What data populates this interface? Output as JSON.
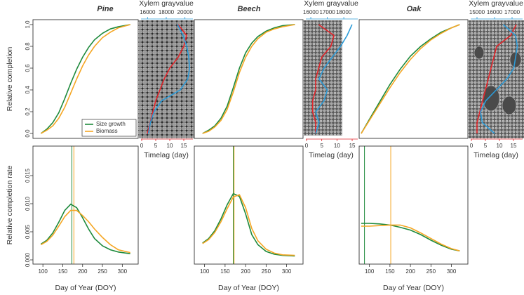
{
  "chart_data": [
    {
      "type": "line",
      "title": "Pine",
      "ylabel": "Relative completion",
      "legend": "lower right",
      "x": [
        95,
        110,
        125,
        140,
        155,
        170,
        185,
        200,
        215,
        230,
        250,
        270,
        290,
        320
      ],
      "xlim": [
        75,
        340
      ],
      "ylim": [
        -0.045,
        1.045
      ],
      "yticks": [
        {
          "value": 0,
          "label": "0.0"
        },
        0.2,
        0.4,
        0.6,
        0.8,
        {
          "value": 1,
          "label": "1.0"
        }
      ],
      "series": [
        {
          "name": "Size growth",
          "color": "#1e8a3c",
          "values": [
            0,
            0.04,
            0.1,
            0.19,
            0.32,
            0.46,
            0.59,
            0.7,
            0.79,
            0.86,
            0.92,
            0.96,
            0.98,
            1.0
          ]
        },
        {
          "name": "Biomass",
          "color": "#f5a623",
          "values": [
            0,
            0.03,
            0.07,
            0.14,
            0.24,
            0.37,
            0.5,
            0.62,
            0.72,
            0.8,
            0.88,
            0.93,
            0.97,
            1.0
          ]
        }
      ]
    },
    {
      "type": "profile",
      "xlabel": "Timelag (day)",
      "x2label": "Xylem grayvalue",
      "y": [
        0,
        0.1,
        0.2,
        0.3,
        0.4,
        0.5,
        0.6,
        0.7,
        0.8,
        0.9,
        1.0
      ],
      "ylim": [
        -0.045,
        1.045
      ],
      "xlim": [
        -1.25,
        18.75
      ],
      "xticks": [
        0,
        5,
        10,
        15
      ],
      "x2lim": [
        15000,
        21000
      ],
      "x2ticks": [
        16000,
        18000,
        20000
      ],
      "series": [
        {
          "color": "#e3262b",
          "values": [
            2,
            3,
            4,
            5,
            6.5,
            8,
            10,
            13,
            15,
            16,
            13
          ]
        },
        {
          "color": "#2b9bd8",
          "axis": "x2",
          "values": [
            16100,
            16300,
            16700,
            17500,
            19500,
            20300,
            20500,
            20400,
            20200,
            19800,
            19200
          ]
        }
      ]
    },
    {
      "type": "line",
      "title": "Beech",
      "x": [
        95,
        110,
        125,
        140,
        155,
        170,
        185,
        200,
        215,
        230,
        250,
        270,
        290,
        320
      ],
      "xlim": [
        75,
        340
      ],
      "ylim": [
        -0.045,
        1.045
      ],
      "series": [
        {
          "color": "#1e8a3c",
          "values": [
            0,
            0.03,
            0.07,
            0.14,
            0.25,
            0.42,
            0.6,
            0.74,
            0.83,
            0.89,
            0.94,
            0.97,
            0.99,
            1.0
          ]
        },
        {
          "color": "#f5a623",
          "values": [
            0,
            0.02,
            0.06,
            0.12,
            0.22,
            0.38,
            0.56,
            0.7,
            0.8,
            0.87,
            0.93,
            0.96,
            0.98,
            1.0
          ]
        }
      ]
    },
    {
      "type": "profile",
      "xlabel": "Timelag (day)",
      "x2label": "Xylem grayvalue",
      "y": [
        0,
        0.1,
        0.2,
        0.3,
        0.4,
        0.5,
        0.6,
        0.7,
        0.8,
        0.9,
        1.0
      ],
      "ylim": [
        -0.045,
        1.045
      ],
      "xlim": [
        -1.15,
        17.3
      ],
      "xticks": [
        0,
        5,
        10,
        15
      ],
      "x2lim": [
        15530,
        18930
      ],
      "x2ticks": [
        16000,
        17000,
        18000
      ],
      "series": [
        {
          "color": "#e3262b",
          "values": [
            3,
            3,
            2,
            2,
            3,
            3,
            4,
            5,
            8,
            9,
            4
          ]
        },
        {
          "color": "#2b9bd8",
          "axis": "x2",
          "values": [
            16300,
            16500,
            16300,
            16800,
            17000,
            16500,
            16800,
            17300,
            17800,
            18200,
            18500
          ]
        }
      ]
    },
    {
      "type": "line",
      "title": "Oak",
      "x": [
        80,
        100,
        125,
        150,
        175,
        200,
        225,
        250,
        275,
        300,
        320
      ],
      "xlim": [
        75,
        340
      ],
      "ylim": [
        -0.045,
        1.045
      ],
      "series": [
        {
          "color": "#1e8a3c",
          "values": [
            0,
            0.13,
            0.29,
            0.45,
            0.59,
            0.71,
            0.8,
            0.87,
            0.93,
            0.97,
            1.0
          ]
        },
        {
          "color": "#f5a623",
          "values": [
            0,
            0.12,
            0.27,
            0.42,
            0.56,
            0.68,
            0.78,
            0.86,
            0.92,
            0.97,
            1.0
          ]
        }
      ]
    },
    {
      "type": "profile",
      "xlabel": "Timelag (day)",
      "x2label": "Xylem grayvalue",
      "y": [
        0,
        0.1,
        0.2,
        0.3,
        0.4,
        0.5,
        0.6,
        0.7,
        0.8,
        0.9,
        1.0
      ],
      "ylim": [
        -0.045,
        1.045
      ],
      "xlim": [
        -1.25,
        18.75
      ],
      "xticks": [
        0,
        5,
        10,
        15
      ],
      "x2lim": [
        14480,
        17680
      ],
      "x2ticks": [
        15000,
        16000,
        17000
      ],
      "series": [
        {
          "color": "#e3262b",
          "values": [
            2,
            2,
            3,
            4,
            5,
            6,
            7,
            8,
            9,
            14,
            16
          ]
        },
        {
          "color": "#2b9bd8",
          "axis": "x2",
          "values": [
            16000,
            15300,
            15200,
            15500,
            16100,
            16700,
            17100,
            17200,
            17300,
            17200,
            16500
          ]
        }
      ]
    },
    {
      "type": "line",
      "ylabel": "Relative completion rate",
      "xlabel": "Day of Year (DOY)",
      "x": [
        95,
        110,
        125,
        140,
        155,
        170,
        185,
        200,
        215,
        230,
        250,
        270,
        290,
        320
      ],
      "xlim": [
        75,
        340
      ],
      "xticks": [
        100,
        150,
        200,
        250,
        300
      ],
      "ylim": [
        -0.00075,
        0.02025
      ],
      "yticks": [
        {
          "value": 0,
          "label": "0.000"
        },
        {
          "value": 0.005,
          "label": "0.005"
        },
        {
          "value": 0.01,
          "label": "0.010"
        },
        {
          "value": 0.015,
          "label": "0.015"
        }
      ],
      "series": [
        {
          "color": "#1e8a3c",
          "peak": 173,
          "values": [
            0.0028,
            0.0035,
            0.0048,
            0.0067,
            0.0088,
            0.0099,
            0.0093,
            0.0075,
            0.0055,
            0.0038,
            0.0025,
            0.0018,
            0.0014,
            0.0011
          ]
        },
        {
          "color": "#f5a623",
          "peak": 178,
          "values": [
            0.0027,
            0.0033,
            0.0044,
            0.006,
            0.0077,
            0.0088,
            0.0088,
            0.0079,
            0.0068,
            0.0055,
            0.004,
            0.0027,
            0.0018,
            0.0013
          ]
        }
      ]
    },
    {
      "type": "line",
      "xlabel": "Day of Year (DOY)",
      "x": [
        95,
        110,
        125,
        140,
        155,
        170,
        185,
        200,
        215,
        230,
        250,
        270,
        290,
        320
      ],
      "xlim": [
        75,
        340
      ],
      "xticks": [
        100,
        150,
        200,
        250,
        300
      ],
      "ylim": [
        -0.00075,
        0.02025
      ],
      "series": [
        {
          "color": "#1e8a3c",
          "peak": 170,
          "values": [
            0.003,
            0.0038,
            0.0052,
            0.0073,
            0.0098,
            0.0118,
            0.0113,
            0.0082,
            0.0045,
            0.0027,
            0.0015,
            0.001,
            0.0008,
            0.0007
          ]
        },
        {
          "color": "#f5a623",
          "peak": 172,
          "values": [
            0.0029,
            0.0036,
            0.0049,
            0.0068,
            0.0091,
            0.0112,
            0.0116,
            0.0093,
            0.0056,
            0.0034,
            0.0019,
            0.0012,
            0.0009,
            0.0008
          ]
        }
      ]
    },
    {
      "type": "line",
      "xlabel": "Day of Year (DOY)",
      "x": [
        80,
        100,
        125,
        150,
        175,
        200,
        225,
        250,
        275,
        300,
        320
      ],
      "xlim": [
        75,
        340
      ],
      "xticks": [
        100,
        150,
        200,
        250,
        300
      ],
      "ylim": [
        -0.00075,
        0.02025
      ],
      "series": [
        {
          "color": "#1e8a3c",
          "peak": 88,
          "values": [
            0.0065,
            0.0065,
            0.0064,
            0.0062,
            0.0058,
            0.0053,
            0.0045,
            0.0035,
            0.0026,
            0.0019,
            0.0016
          ]
        },
        {
          "color": "#f5a623",
          "peak": 152,
          "values": [
            0.006,
            0.006,
            0.0061,
            0.0062,
            0.0062,
            0.0057,
            0.0048,
            0.0038,
            0.0028,
            0.002,
            0.0016
          ]
        }
      ]
    }
  ]
}
